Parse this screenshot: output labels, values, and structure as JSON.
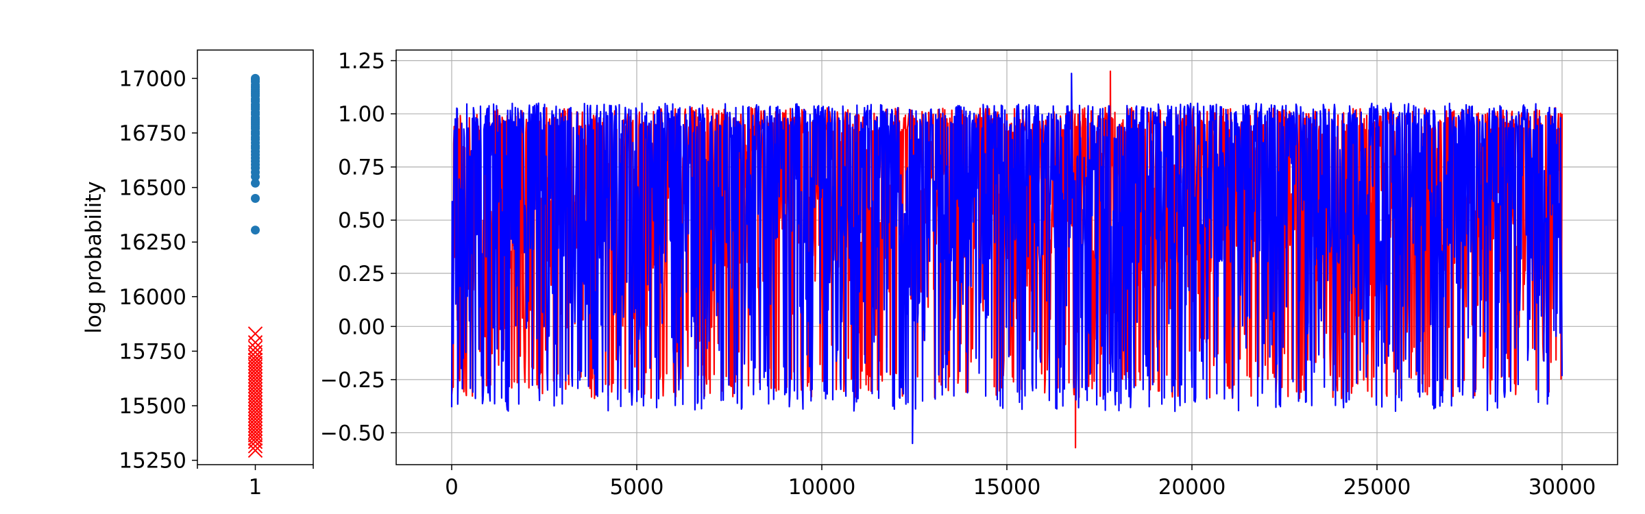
{
  "chart_data": [
    {
      "type": "scatter",
      "ylabel": "log probability",
      "xlabel": "",
      "x_ticks": [
        1
      ],
      "x_tick_labels": [
        "1"
      ],
      "y_ticks": [
        15250,
        15500,
        15750,
        16000,
        16250,
        16500,
        16750,
        17000
      ],
      "y_tick_labels": [
        "15250",
        "15500",
        "15750",
        "16000",
        "16250",
        "16500",
        "16750",
        "17000"
      ],
      "ylim": [
        15230,
        17130
      ],
      "xlim": [
        0.5,
        1.5
      ],
      "grid": false,
      "series": [
        {
          "marker": "circle",
          "color": "#1f77b4",
          "x": 1,
          "values": [
            17000,
            16995,
            16985,
            16970,
            16960,
            16950,
            16940,
            16930,
            16920,
            16905,
            16895,
            16880,
            16870,
            16860,
            16845,
            16835,
            16820,
            16810,
            16800,
            16790,
            16780,
            16770,
            16755,
            16745,
            16730,
            16720,
            16705,
            16690,
            16680,
            16665,
            16650,
            16635,
            16620,
            16605,
            16590,
            16570,
            16550,
            16520,
            16450,
            16305
          ]
        },
        {
          "marker": "x",
          "color": "#ff0000",
          "x": 1,
          "values": [
            15830,
            15790,
            15765,
            15745,
            15725,
            15710,
            15695,
            15680,
            15665,
            15650,
            15635,
            15620,
            15605,
            15590,
            15575,
            15560,
            15545,
            15530,
            15515,
            15500,
            15485,
            15470,
            15455,
            15440,
            15425,
            15410,
            15395,
            15380,
            15365,
            15350,
            15335,
            15315,
            15295
          ]
        }
      ]
    },
    {
      "type": "line",
      "xlabel": "",
      "ylabel": "",
      "x_ticks": [
        0,
        5000,
        10000,
        15000,
        20000,
        25000,
        30000
      ],
      "x_tick_labels": [
        "0",
        "5000",
        "10000",
        "15000",
        "20000",
        "25000",
        "30000"
      ],
      "y_ticks": [
        -0.5,
        -0.25,
        0.0,
        0.25,
        0.5,
        0.75,
        1.0,
        1.25
      ],
      "y_tick_labels": [
        "−0.50",
        "−0.25",
        "0.00",
        "0.25",
        "0.50",
        "0.75",
        "1.00",
        "1.25"
      ],
      "xlim": [
        -1500,
        31500
      ],
      "ylim": [
        -0.65,
        1.3
      ],
      "grid": true,
      "series": [
        {
          "color": "#ff0000",
          "n_points": 30000,
          "center": 0.62,
          "upper_typical": 1.03,
          "lower_typical": -0.22,
          "max": 1.2,
          "min": -0.57,
          "max_at": 17800,
          "min_at": 16850
        },
        {
          "color": "#0000ff",
          "n_points": 30000,
          "center": 0.64,
          "upper_typical": 1.05,
          "lower_typical": -0.28,
          "max": 1.19,
          "min": -0.55,
          "max_at": 16750,
          "min_at": 12450
        }
      ]
    }
  ]
}
